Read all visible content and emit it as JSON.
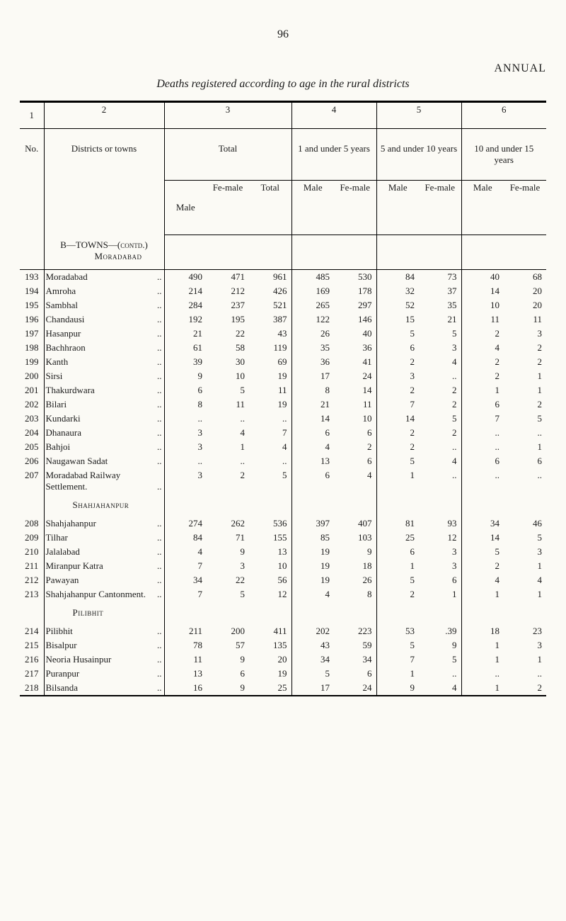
{
  "page_number": "96",
  "header_right": "ANNUAL",
  "subtitle": "Deaths registered according to age in the rural districts",
  "col_numbers": [
    "1",
    "2",
    "3",
    "4",
    "5",
    "6"
  ],
  "group_headers": {
    "total": "Total",
    "g1": "1 and under 5 years",
    "g5": "5 and under 10 years",
    "g10": "10 and under 15 years"
  },
  "row_header_no": "No.",
  "row_header_districts": "Districts or towns",
  "sub_headers": {
    "male": "Male",
    "female": "Fe-male",
    "total": "Total"
  },
  "section_b_title": "B—TOWNS—(contd.)",
  "section_b_sub": "Moradabad",
  "rows_b1": [
    {
      "no": "193",
      "name": "Moradabad",
      "v": [
        "490",
        "471",
        "961",
        "485",
        "530",
        "84",
        "73",
        "40",
        "68"
      ]
    },
    {
      "no": "194",
      "name": "Amroha",
      "v": [
        "214",
        "212",
        "426",
        "169",
        "178",
        "32",
        "37",
        "14",
        "20"
      ]
    },
    {
      "no": "195",
      "name": "Sambhal",
      "v": [
        "284",
        "237",
        "521",
        "265",
        "297",
        "52",
        "35",
        "10",
        "20"
      ]
    },
    {
      "no": "196",
      "name": "Chandausi",
      "v": [
        "192",
        "195",
        "387",
        "122",
        "146",
        "15",
        "21",
        "11",
        "11"
      ]
    },
    {
      "no": "197",
      "name": "Hasanpur",
      "v": [
        "21",
        "22",
        "43",
        "26",
        "40",
        "5",
        "5",
        "2",
        "3"
      ]
    },
    {
      "no": "198",
      "name": "Bachhraon",
      "v": [
        "61",
        "58",
        "119",
        "35",
        "36",
        "6",
        "3",
        "4",
        "2"
      ]
    },
    {
      "no": "199",
      "name": "Kanth",
      "v": [
        "39",
        "30",
        "69",
        "36",
        "41",
        "2",
        "4",
        "2",
        "2"
      ]
    },
    {
      "no": "200",
      "name": "Sirsi",
      "v": [
        "9",
        "10",
        "19",
        "17",
        "24",
        "3",
        "..",
        "2",
        "1"
      ]
    },
    {
      "no": "201",
      "name": "Thakurdwara",
      "v": [
        "6",
        "5",
        "11",
        "8",
        "14",
        "2",
        "2",
        "1",
        "1"
      ]
    },
    {
      "no": "202",
      "name": "Bilari",
      "v": [
        "8",
        "11",
        "19",
        "21",
        "11",
        "7",
        "2",
        "6",
        "2"
      ]
    },
    {
      "no": "203",
      "name": "Kundarki",
      "v": [
        "..",
        "..",
        "..",
        "14",
        "10",
        "14",
        "5",
        "7",
        "5"
      ]
    },
    {
      "no": "204",
      "name": "Dhanaura",
      "v": [
        "3",
        "4",
        "7",
        "6",
        "6",
        "2",
        "2",
        "..",
        ".."
      ]
    },
    {
      "no": "205",
      "name": "Bahjoi",
      "v": [
        "3",
        "1",
        "4",
        "4",
        "2",
        "2",
        "..",
        "..",
        "1"
      ]
    },
    {
      "no": "206",
      "name": "Naugawan Sadat",
      "v": [
        "..",
        "..",
        "..",
        "13",
        "6",
        "5",
        "4",
        "6",
        "6"
      ]
    },
    {
      "no": "207",
      "name": "Moradabad Railway Settlement.",
      "v": [
        "3",
        "2",
        "5",
        "6",
        "4",
        "1",
        "..",
        "..",
        ".."
      ]
    }
  ],
  "section_sha": "Shahjahanpur",
  "rows_b2": [
    {
      "no": "208",
      "name": "Shahjahanpur",
      "v": [
        "274",
        "262",
        "536",
        "397",
        "407",
        "81",
        "93",
        "34",
        "46"
      ]
    },
    {
      "no": "209",
      "name": "Tilhar",
      "v": [
        "84",
        "71",
        "155",
        "85",
        "103",
        "25",
        "12",
        "14",
        "5"
      ]
    },
    {
      "no": "210",
      "name": "Jalalabad",
      "v": [
        "4",
        "9",
        "13",
        "19",
        "9",
        "6",
        "3",
        "5",
        "3"
      ]
    },
    {
      "no": "211",
      "name": "Miranpur Katra",
      "v": [
        "7",
        "3",
        "10",
        "19",
        "18",
        "1",
        "3",
        "2",
        "1"
      ]
    },
    {
      "no": "212",
      "name": "Pawayan",
      "v": [
        "34",
        "22",
        "56",
        "19",
        "26",
        "5",
        "6",
        "4",
        "4"
      ]
    },
    {
      "no": "213",
      "name": "Shahjahanpur Cantonment.",
      "v": [
        "7",
        "5",
        "12",
        "4",
        "8",
        "2",
        "1",
        "1",
        "1"
      ]
    }
  ],
  "section_pil": "Pilibhit",
  "rows_b3": [
    {
      "no": "214",
      "name": "Pilibhit",
      "v": [
        "211",
        "200",
        "411",
        "202",
        "223",
        "53",
        ".39",
        "18",
        "23"
      ]
    },
    {
      "no": "215",
      "name": "Bisalpur",
      "v": [
        "78",
        "57",
        "135",
        "43",
        "59",
        "5",
        "9",
        "1",
        "3"
      ]
    },
    {
      "no": "216",
      "name": "Neoria Husainpur",
      "v": [
        "11",
        "9",
        "20",
        "34",
        "34",
        "7",
        "5",
        "1",
        "1"
      ]
    },
    {
      "no": "217",
      "name": "Puranpur",
      "v": [
        "13",
        "6",
        "19",
        "5",
        "6",
        "1",
        "..",
        "..",
        ".."
      ]
    },
    {
      "no": "218",
      "name": "Bilsanda",
      "v": [
        "16",
        "9",
        "25",
        "17",
        "24",
        "9",
        "4",
        "1",
        "2"
      ]
    }
  ]
}
